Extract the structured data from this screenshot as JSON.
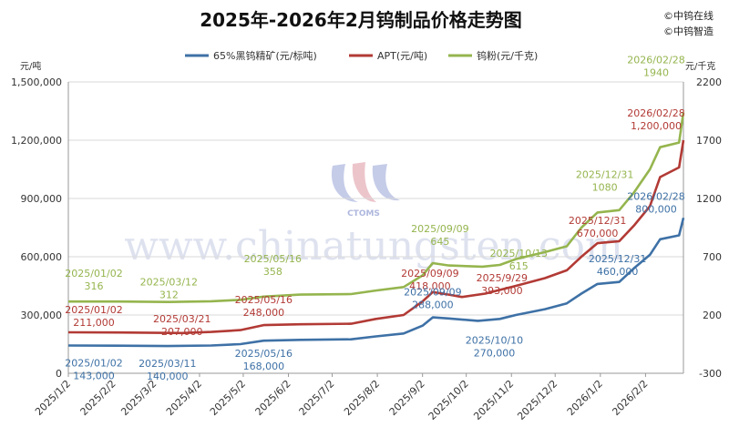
{
  "title": "2025年-2026年2月钨制品价格走势图",
  "brand": [
    "©中钨在线",
    "©中钨智造"
  ],
  "watermark": {
    "text": "www.chinatungsten.com",
    "logo_text": "CTOMS"
  },
  "colors": {
    "concentrate": "#3e71a6",
    "apt": "#b23a35",
    "powder": "#95b54e",
    "grid": "#d9d9d9"
  },
  "chart_data": {
    "type": "line",
    "title": "2025年-2026年2月钨制品价格走势图",
    "left_axis": {
      "unit": "元/吨",
      "min": 0,
      "max": 1500000,
      "ticks": [
        "0",
        "300,000",
        "600,000",
        "900,000",
        "1,200,000",
        "1,500,000"
      ],
      "tick_values": [
        0,
        300000,
        600000,
        900000,
        1200000,
        1500000
      ]
    },
    "right_axis": {
      "unit": "元/千克",
      "min": -300,
      "max": 2200,
      "ticks": [
        "-300",
        "200",
        "700",
        "1200",
        "1700",
        "2200"
      ],
      "tick_values": [
        -300,
        200,
        700,
        1200,
        1700,
        2200
      ]
    },
    "x_ticks": [
      "2025/1/2",
      "2025/2/2",
      "2025/3/2",
      "2025/4/2",
      "2025/5/2",
      "2025/6/2",
      "2025/7/2",
      "2025/8/2",
      "2025/9/2",
      "2025/10/2",
      "2025/11/2",
      "2025/12/2",
      "2026/1/2",
      "2026/2/2"
    ],
    "x_range": [
      "2025-01-02",
      "2026-02-28"
    ],
    "grid": "horizontal",
    "legend_position": "top",
    "series": [
      {
        "name": "65%黑钨精矿(元/标吨)",
        "axis": "left",
        "color": "#3e71a6",
        "points": [
          [
            "2025-01-02",
            143000
          ],
          [
            "2025-02-05",
            142000
          ],
          [
            "2025-03-11",
            140000
          ],
          [
            "2025-04-10",
            143000
          ],
          [
            "2025-04-30",
            150000
          ],
          [
            "2025-05-16",
            168000
          ],
          [
            "2025-06-10",
            172000
          ],
          [
            "2025-07-15",
            175000
          ],
          [
            "2025-08-01",
            190000
          ],
          [
            "2025-08-20",
            205000
          ],
          [
            "2025-09-02",
            245000
          ],
          [
            "2025-09-09",
            288000
          ],
          [
            "2025-09-20",
            282000
          ],
          [
            "2025-10-10",
            270000
          ],
          [
            "2025-10-25",
            280000
          ],
          [
            "2025-11-05",
            300000
          ],
          [
            "2025-11-25",
            330000
          ],
          [
            "2025-12-10",
            360000
          ],
          [
            "2025-12-20",
            410000
          ],
          [
            "2025-12-31",
            460000
          ],
          [
            "2026-01-15",
            470000
          ],
          [
            "2026-01-25",
            540000
          ],
          [
            "2026-02-05",
            610000
          ],
          [
            "2026-02-12",
            690000
          ],
          [
            "2026-02-25",
            710000
          ],
          [
            "2026-02-28",
            800000
          ]
        ]
      },
      {
        "name": "APT(元/吨)",
        "axis": "left",
        "color": "#b23a35",
        "points": [
          [
            "2025-01-02",
            211000
          ],
          [
            "2025-02-05",
            210000
          ],
          [
            "2025-03-21",
            207000
          ],
          [
            "2025-04-10",
            213000
          ],
          [
            "2025-04-30",
            222000
          ],
          [
            "2025-05-16",
            248000
          ],
          [
            "2025-06-10",
            252000
          ],
          [
            "2025-07-15",
            255000
          ],
          [
            "2025-08-01",
            280000
          ],
          [
            "2025-08-20",
            300000
          ],
          [
            "2025-09-02",
            370000
          ],
          [
            "2025-09-09",
            418000
          ],
          [
            "2025-09-20",
            405000
          ],
          [
            "2025-09-29",
            393000
          ],
          [
            "2025-10-15",
            410000
          ],
          [
            "2025-11-05",
            450000
          ],
          [
            "2025-11-25",
            490000
          ],
          [
            "2025-12-10",
            530000
          ],
          [
            "2025-12-20",
            600000
          ],
          [
            "2025-12-31",
            670000
          ],
          [
            "2026-01-15",
            680000
          ],
          [
            "2026-01-25",
            760000
          ],
          [
            "2026-02-05",
            860000
          ],
          [
            "2026-02-12",
            1010000
          ],
          [
            "2026-02-25",
            1060000
          ],
          [
            "2026-02-28",
            1200000
          ]
        ]
      },
      {
        "name": "钨粉(元/千克)",
        "axis": "right",
        "color": "#95b54e",
        "points": [
          [
            "2025-01-02",
            316
          ],
          [
            "2025-02-05",
            316
          ],
          [
            "2025-03-12",
            312
          ],
          [
            "2025-04-10",
            318
          ],
          [
            "2025-04-30",
            330
          ],
          [
            "2025-05-16",
            358
          ],
          [
            "2025-06-10",
            375
          ],
          [
            "2025-07-15",
            380
          ],
          [
            "2025-08-01",
            410
          ],
          [
            "2025-08-20",
            440
          ],
          [
            "2025-09-02",
            540
          ],
          [
            "2025-09-09",
            645
          ],
          [
            "2025-09-20",
            625
          ],
          [
            "2025-10-13",
            615
          ],
          [
            "2025-10-25",
            630
          ],
          [
            "2025-11-05",
            680
          ],
          [
            "2025-11-25",
            740
          ],
          [
            "2025-12-10",
            790
          ],
          [
            "2025-12-20",
            950
          ],
          [
            "2025-12-31",
            1080
          ],
          [
            "2026-01-15",
            1100
          ],
          [
            "2026-01-25",
            1250
          ],
          [
            "2026-02-05",
            1450
          ],
          [
            "2026-02-12",
            1640
          ],
          [
            "2026-02-25",
            1680
          ],
          [
            "2026-02-28",
            1940
          ]
        ]
      }
    ],
    "annotations": [
      {
        "series": 2,
        "date": "2025-01-02",
        "value": 316,
        "label": [
          "2025/01/02",
          "316"
        ]
      },
      {
        "series": 2,
        "date": "2025-03-12",
        "value": 312,
        "label": [
          "2025/03/12",
          "312"
        ]
      },
      {
        "series": 2,
        "date": "2025-05-16",
        "value": 358,
        "label": [
          "2025/05/16",
          "358"
        ]
      },
      {
        "series": 2,
        "date": "2025-09-09",
        "value": 645,
        "label": [
          "2025/09/09",
          "645"
        ]
      },
      {
        "series": 2,
        "date": "2025-10-13",
        "value": 615,
        "label": [
          "2025/10/13",
          "615"
        ]
      },
      {
        "series": 2,
        "date": "2025-12-31",
        "value": 1080,
        "label": [
          "2025/12/31",
          "1080"
        ]
      },
      {
        "series": 2,
        "date": "2026-02-28",
        "value": 1940,
        "label": [
          "2026/02/28",
          "1940"
        ]
      },
      {
        "series": 1,
        "date": "2025-01-02",
        "value": 211000,
        "label": [
          "2025/01/02",
          "211,000"
        ]
      },
      {
        "series": 1,
        "date": "2025-03-21",
        "value": 207000,
        "label": [
          "2025/03/21",
          "207,000"
        ]
      },
      {
        "series": 1,
        "date": "2025-05-16",
        "value": 248000,
        "label": [
          "2025/05/16",
          "248,000"
        ]
      },
      {
        "series": 1,
        "date": "2025-09-09",
        "value": 418000,
        "label": [
          "2025/09/09",
          "418,000"
        ]
      },
      {
        "series": 1,
        "date": "2025-09-29",
        "value": 393000,
        "label": [
          "2025/9/29",
          "393,000"
        ]
      },
      {
        "series": 1,
        "date": "2025-12-31",
        "value": 670000,
        "label": [
          "2025/12/31",
          "670,000"
        ]
      },
      {
        "series": 1,
        "date": "2026-02-28",
        "value": 1200000,
        "label": [
          "2026/02/28",
          "1,200,000"
        ]
      },
      {
        "series": 0,
        "date": "2025-01-02",
        "value": 143000,
        "label": [
          "2025/01/02",
          "143,000"
        ]
      },
      {
        "series": 0,
        "date": "2025-03-11",
        "value": 140000,
        "label": [
          "2025/03/11",
          "140,000"
        ]
      },
      {
        "series": 0,
        "date": "2025-05-16",
        "value": 168000,
        "label": [
          "2025/05/16",
          "168,000"
        ]
      },
      {
        "series": 0,
        "date": "2025-09-09",
        "value": 288000,
        "label": [
          "2025/09/09",
          "288,000"
        ]
      },
      {
        "series": 0,
        "date": "2025-10-10",
        "value": 270000,
        "label": [
          "2025/10/10",
          "270,000"
        ]
      },
      {
        "series": 0,
        "date": "2025-12-31",
        "value": 460000,
        "label": [
          "2025/12/31",
          "460,000"
        ]
      },
      {
        "series": 0,
        "date": "2026-02-28",
        "value": 800000,
        "label": [
          "2026/02/28",
          "800,000"
        ]
      }
    ]
  }
}
